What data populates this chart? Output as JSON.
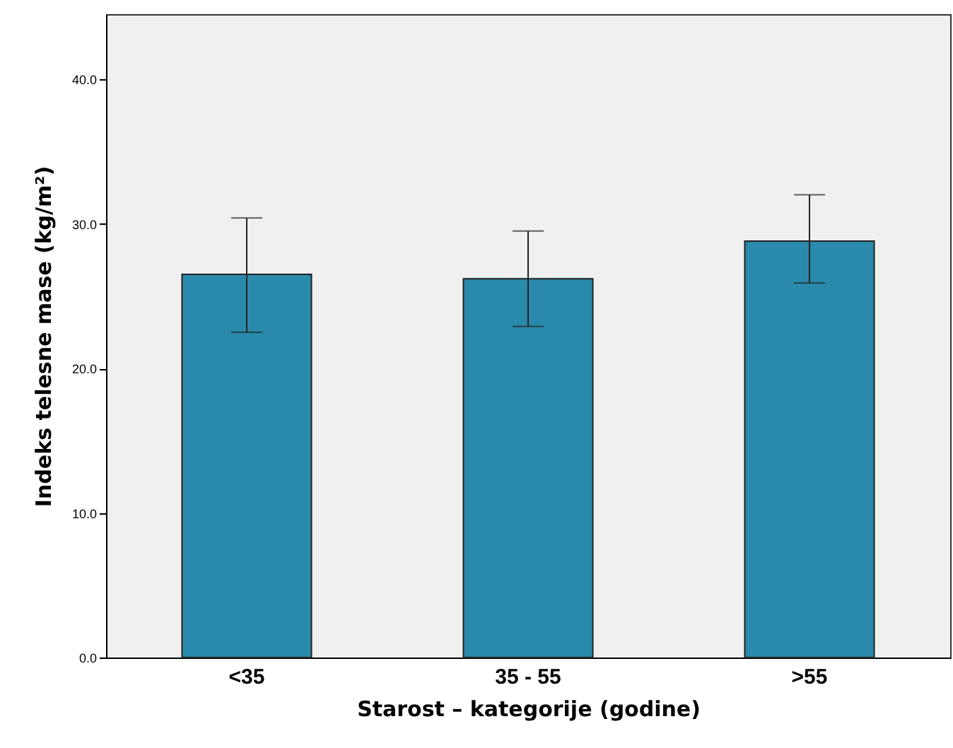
{
  "chart_data": {
    "type": "bar",
    "xlabel": "Starost – kategorije (godine)",
    "ylabel": "Indeks telesne mase (kg/m²)",
    "categories": [
      "<35",
      "35 - 55",
      ">55"
    ],
    "values": [
      26.5,
      26.2,
      28.8
    ],
    "errors": [
      [
        22.5,
        30.4
      ],
      [
        22.9,
        29.5
      ],
      [
        25.9,
        32.0
      ]
    ],
    "color": "#2a8aab",
    "ylim": [
      0,
      44.5
    ],
    "yticks": [
      {
        "value": 0,
        "label": "0.0"
      },
      {
        "value": 10,
        "label": "10.0"
      },
      {
        "value": 20,
        "label": "20.0"
      },
      {
        "value": 30,
        "label": "30.0"
      },
      {
        "value": 40,
        "label": "40.0"
      }
    ]
  }
}
